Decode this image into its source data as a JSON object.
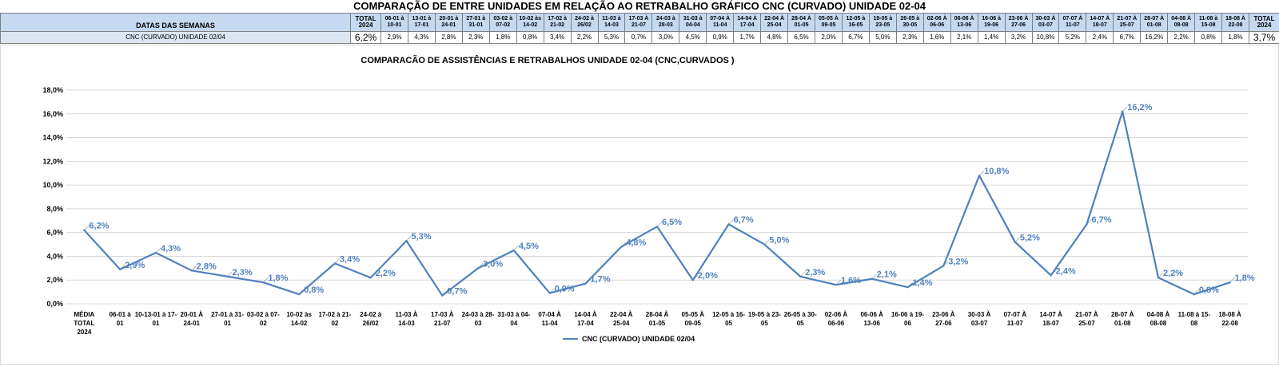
{
  "page_title": "COMPARAÇÃO DE ENTRE UNIDADES EM RELAÇÃO AO RETRABALHO GRÁFICO CNC (CURVADO) UNIDADE 02-04",
  "table": {
    "row1_label": "DATAS DAS SEMANAS",
    "row2_label": "CNC (CURVADO) UNIDADE 02/04",
    "total_header_left": "TOTAL 2024",
    "total_header_right": "TOTAL 2024",
    "total_value_left": "6,2%",
    "total_value_right": "3,7%",
    "weeks": [
      "06-01 à 10-01",
      "13-01 à 17-01",
      "20-01 à 24-01",
      "27-01 à 31-01",
      "03-02 à 07-02",
      "10-02 às 14-02",
      "17-02 à 21-02",
      "24-02 à 26/02",
      "11-03 à 14-03",
      "17-03 À 21-07",
      "24-03 à 28-03",
      "31-03 à 04-04",
      "07-04 À 11-04",
      "14-04 À 17-04",
      "22-04 À 25-04",
      "28-04 À 01-05",
      "05-05 À 09-05",
      "12-05 à 16-05",
      "19-05 à 23-05",
      "26-05 à 30-05",
      "02-06 À 06-06",
      "06-06 À 13-06",
      "16-06 à 19-06",
      "23-06 À 27-06",
      "30-03 À 03-07",
      "07-07 À 11-07",
      "14-07 À 18-07",
      "21-07 À 25-07",
      "28-07 À 01-08",
      "04-08 À 08-08",
      "11-08 à 15-08",
      "18-08 À 22-08"
    ],
    "values": [
      "2,9%",
      "4,3%",
      "2,8%",
      "2,3%",
      "1,8%",
      "0,8%",
      "3,4%",
      "2,2%",
      "5,3%",
      "0,7%",
      "3,0%",
      "4,5%",
      "0,9%",
      "1,7%",
      "4,8%",
      "6,5%",
      "2,0%",
      "6,7%",
      "5,0%",
      "2,3%",
      "1,6%",
      "2,1%",
      "1,4%",
      "3,2%",
      "10,8%",
      "5,2%",
      "2,4%",
      "6,7%",
      "16,2%",
      "2,2%",
      "0,8%",
      "1,8%"
    ]
  },
  "chart_data": {
    "type": "line",
    "title": "COMPARACÃO DE ASSISTÊNCIAS E RETRABALHOS UNIDADE 02-04  (CNC,CURVADOS )",
    "xlabel": "",
    "ylabel": "",
    "ylim": [
      0,
      18
    ],
    "yticks": [
      "0,0%",
      "2,0%",
      "4,0%",
      "6,0%",
      "8,0%",
      "10,0%",
      "12,0%",
      "14,0%",
      "16,0%",
      "18,0%"
    ],
    "grid": true,
    "legend_position": "bottom",
    "line_color": "#4f81bd",
    "categories": [
      [
        "MÉDIA",
        "TOTAL",
        "2024"
      ],
      [
        "06-01 à",
        "01"
      ],
      [
        "10-13-01 à 17-",
        "01"
      ],
      [
        "20-01 À",
        "24-01"
      ],
      [
        "27-01 à 31-",
        "01"
      ],
      [
        "03-02 á 07-",
        "02"
      ],
      [
        "10-02 às",
        "14-02"
      ],
      [
        "17-02 à 21-",
        "02"
      ],
      [
        "24-02 à",
        "26/02"
      ],
      [
        "11-03 À",
        "14-03"
      ],
      [
        "17-03 À",
        "21-07"
      ],
      [
        "24-03 à 28-",
        "03"
      ],
      [
        "31-03 à 04-",
        "04"
      ],
      [
        "07-04 À",
        "11-04"
      ],
      [
        "14-04 À",
        "17-04"
      ],
      [
        "22-04 À",
        "25-04"
      ],
      [
        "28-04 À",
        "01-05"
      ],
      [
        "05-05 À",
        "09-05"
      ],
      [
        "12-05 à 16-",
        "05"
      ],
      [
        "19-05 à 23-",
        "05"
      ],
      [
        "26-05 à 30-",
        "05"
      ],
      [
        "02-06 À",
        "06-06"
      ],
      [
        "06-06 À",
        "13-06"
      ],
      [
        "16-06 à 19-",
        "06"
      ],
      [
        "23-06 À",
        "27-06"
      ],
      [
        "30-03 À",
        "03-07"
      ],
      [
        "07-07 À",
        "11-07"
      ],
      [
        "14-07 À",
        "18-07"
      ],
      [
        "21-07 À",
        "25-07"
      ],
      [
        "28-07 À",
        "01-08"
      ],
      [
        "04-08 À",
        "08-08"
      ],
      [
        "11-08 à 15-",
        "08"
      ],
      [
        "18-08 À",
        "22-08"
      ]
    ],
    "series": [
      {
        "name": "CNC (CURVADO) UNIDADE 02/04",
        "values": [
          6.2,
          2.9,
          4.3,
          2.8,
          2.3,
          1.8,
          0.8,
          3.4,
          2.2,
          5.3,
          0.7,
          3.0,
          4.5,
          0.9,
          1.7,
          4.8,
          6.5,
          2.0,
          6.7,
          5.0,
          2.3,
          1.6,
          2.1,
          1.4,
          3.2,
          10.8,
          5.2,
          2.4,
          6.7,
          16.2,
          2.2,
          0.8,
          1.8
        ],
        "labels": [
          "6,2%",
          "2,9%",
          "4,3%",
          "2,8%",
          "2,3%",
          "1,8%",
          "0,8%",
          "3,4%",
          "2,2%",
          "5,3%",
          "0,7%",
          "3,0%",
          "4,5%",
          "0,9%",
          "1,7%",
          "4,8%",
          "6,5%",
          "2,0%",
          "6,7%",
          "5,0%",
          "2,3%",
          "1,6%",
          "2,1%",
          "1,4%",
          "3,2%",
          "10,8%",
          "5,2%",
          "2,4%",
          "6,7%",
          "16,2%",
          "2,2%",
          "0,8%",
          "1,8%"
        ]
      }
    ]
  }
}
